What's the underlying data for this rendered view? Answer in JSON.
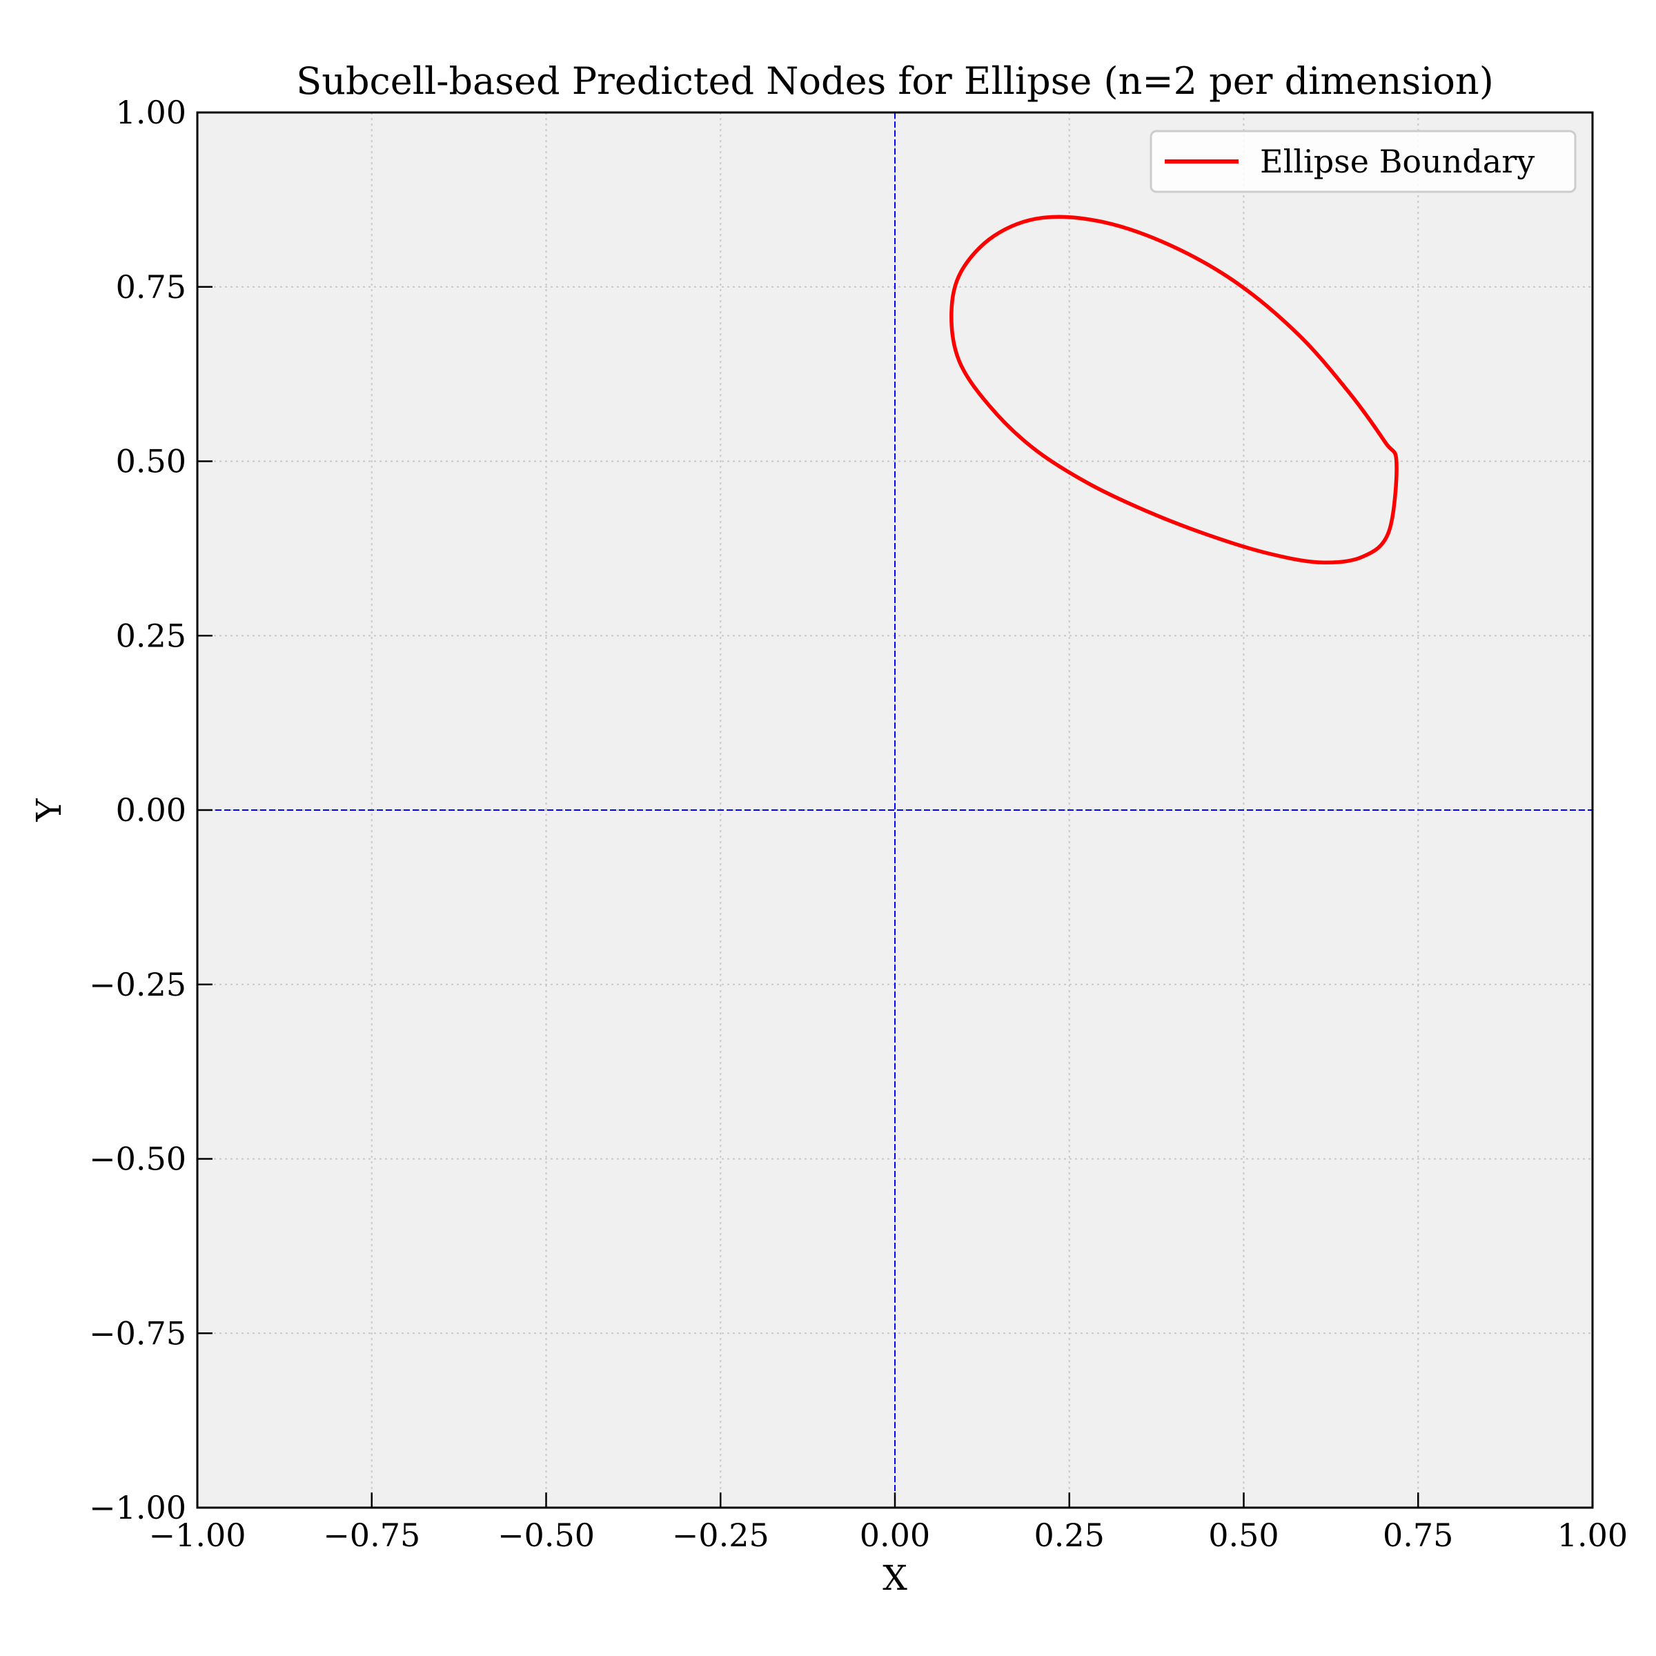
{
  "chart_data": {
    "type": "line",
    "title": "Subcell-based Predicted Nodes for Ellipse (n=2 per dimension)",
    "xlabel": "X",
    "ylabel": "Y",
    "xlim": [
      -1.0,
      1.0
    ],
    "ylim": [
      -1.0,
      1.0
    ],
    "x_ticks": [
      -1.0,
      -0.75,
      -0.5,
      -0.25,
      0.0,
      0.25,
      0.5,
      0.75,
      1.0
    ],
    "y_ticks": [
      -1.0,
      -0.75,
      -0.5,
      -0.25,
      0.0,
      0.25,
      0.5,
      0.75,
      1.0
    ],
    "x_tick_labels": [
      "−1.00",
      "−0.75",
      "−0.50",
      "−0.25",
      "0.00",
      "0.25",
      "0.50",
      "0.75",
      "1.00"
    ],
    "y_tick_labels": [
      "−1.00",
      "−0.75",
      "−0.50",
      "−0.25",
      "0.00",
      "0.25",
      "0.50",
      "0.75",
      "1.00"
    ],
    "grid": true,
    "legend_position": "top-right",
    "reference_lines": {
      "x": 0.0,
      "y": 0.0,
      "color": "#0000ff",
      "style": "dashed"
    },
    "series": [
      {
        "name": "Ellipse Boundary",
        "color": "#ff0000",
        "x": [
          0.719,
          0.708,
          0.67,
          0.61,
          0.535,
          0.45,
          0.362,
          0.276,
          0.198,
          0.135,
          0.092,
          0.081,
          0.095,
          0.142,
          0.211,
          0.298,
          0.394,
          0.491,
          0.58,
          0.653,
          0.703,
          0.719
        ],
        "y": [
          0.498,
          0.399,
          0.363,
          0.355,
          0.368,
          0.394,
          0.428,
          0.469,
          0.519,
          0.58,
          0.644,
          0.713,
          0.772,
          0.823,
          0.849,
          0.843,
          0.81,
          0.755,
          0.68,
          0.596,
          0.527,
          0.498
        ]
      }
    ]
  }
}
